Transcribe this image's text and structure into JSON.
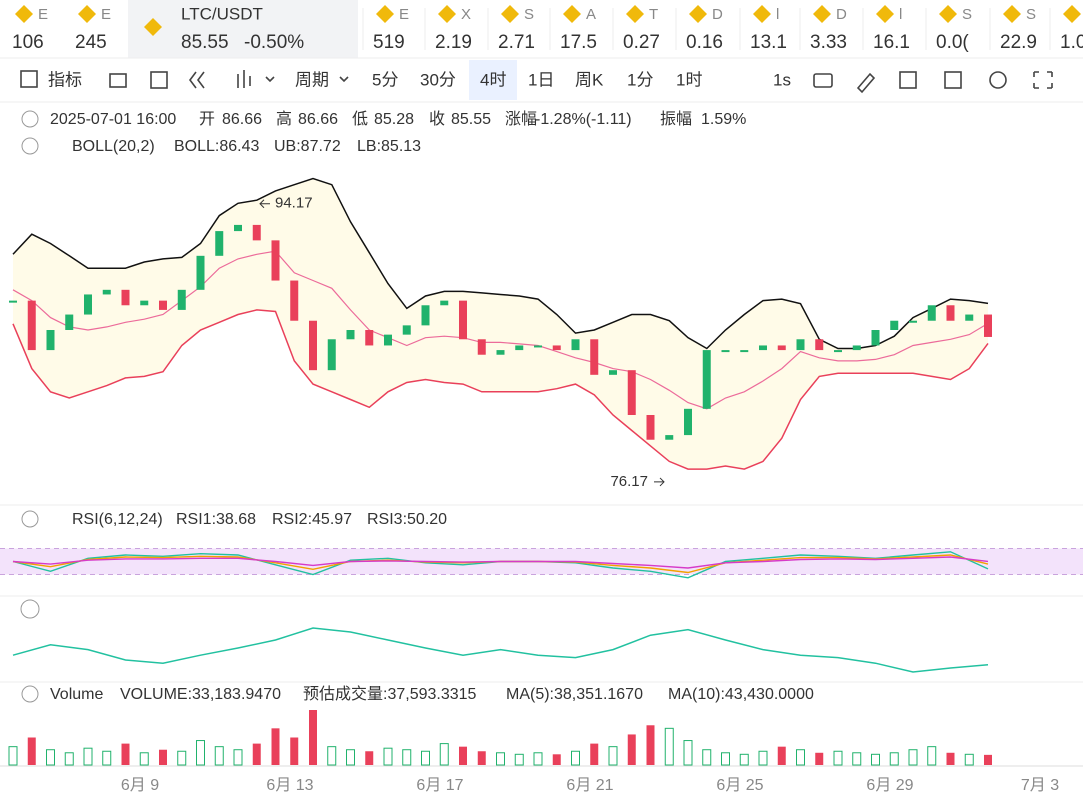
{
  "ticker": [
    {
      "symbol": "E",
      "price": "106",
      "color": "#e9405a"
    },
    {
      "symbol": "E",
      "price": "245",
      "color": "#20b26c"
    },
    {
      "symbol": "E",
      "price": "519",
      "color": "#e9405a"
    },
    {
      "symbol": "X",
      "price": "2.19",
      "color": "#e9405a"
    },
    {
      "symbol": "S",
      "price": "2.71",
      "color": "#20b26c"
    },
    {
      "symbol": "A",
      "price": "17.5",
      "color": "#e9405a"
    },
    {
      "symbol": "T",
      "price": "0.27",
      "color": "#20b26c"
    },
    {
      "symbol": "D",
      "price": "0.16",
      "color": "#20b26c"
    },
    {
      "symbol": "l",
      "price": "13.1",
      "color": "#20b26c"
    },
    {
      "symbol": "D",
      "price": "3.33",
      "color": "#222222"
    },
    {
      "symbol": "l",
      "price": "16.1",
      "color": "#20b26c"
    },
    {
      "symbol": "S",
      "price": "0.0(",
      "color": "#e9405a"
    },
    {
      "symbol": "S",
      "price": "22.9",
      "color": "#e9405a"
    },
    {
      "symbol": "S",
      "price": "1.0",
      "color": "#222222"
    }
  ],
  "active": {
    "symbol": "LTC/USDT",
    "price": "85.55",
    "change": "-0.50%"
  },
  "toolbar": [
    "指标",
    "周期",
    "5分",
    "30分",
    "4时",
    "1日",
    "周K",
    "1分",
    "1时",
    "1s"
  ],
  "info": [
    "2025-07-01 16:00",
    "开",
    "86.66",
    "高",
    "86.66",
    "低",
    "85.28",
    "收",
    "85.55",
    "涨幅",
    "-1.28%(-1.11)",
    "振幅",
    "1.59%"
  ],
  "boll_legend": [
    "BOLL(20,2)",
    "BOLL:86.43",
    "UB:87.72",
    "LB:85.13"
  ],
  "rsi_legend": [
    "RSI(6,12,24)",
    "RSI1:38.68",
    "RSI2:45.97",
    "RSI3:50.20"
  ],
  "volume_legend": [
    "Volume",
    "VOLUME:33,183.9470",
    "预估成交量:37,593.3315",
    "MA(5):38,351.1670",
    "MA(10):43,430.0000"
  ],
  "dates": [
    "6月 9",
    "6月 13",
    "6月 17",
    "6月 21",
    "6月 25",
    "6月 29",
    "7月 3"
  ],
  "chart_data": [
    {
      "type": "candlestick",
      "ylim": [
        75,
        97
      ],
      "up_color": "#20b26c",
      "down_color": "#e9405a",
      "max": 94.17,
      "min": 76.17,
      "values": [
        87.9,
        84.7,
        86.0,
        87.0,
        88.3,
        88.6,
        87.6,
        87.9,
        87.3,
        88.6,
        90.8,
        92.4,
        92.8,
        91.8,
        89.2,
        86.6,
        83.4,
        85.4,
        86.0,
        85.0,
        85.7,
        86.3,
        87.6,
        87.9,
        85.4,
        84.4,
        84.7,
        85.0,
        85.0,
        84.7,
        85.4,
        83.1,
        83.4,
        80.5,
        78.9,
        79.2,
        80.9,
        84.7,
        84.7,
        84.7,
        85.0,
        84.7,
        85.4,
        84.7,
        84.7,
        85.0,
        86.0,
        86.6,
        86.6,
        87.6,
        86.6,
        87.0,
        85.55
      ],
      "upper": {
        "color": "#111111",
        "values": [
          90.9,
          92.2,
          91.6,
          90.8,
          90.0,
          90.0,
          90.0,
          90.4,
          90.6,
          90.7,
          91.6,
          93.4,
          94.2,
          94.4,
          95.0,
          95.4,
          95.8,
          95.4,
          93.0,
          91.0,
          89.0,
          87.4,
          88.2,
          88.5,
          88.5,
          88.4,
          88.3,
          88.2,
          88.0,
          87.0,
          85.8,
          86.0,
          86.5,
          87.0,
          87.0,
          86.6,
          85.5,
          84.8,
          86.0,
          87.0,
          87.9,
          88.0,
          87.7,
          85.4,
          84.8,
          84.8,
          85.0,
          85.6,
          86.8,
          87.4,
          88.0,
          87.9,
          87.72
        ]
      },
      "middle": {
        "color": "#ec6b9a",
        "values": [
          88.6,
          87.9,
          86.8,
          86.2,
          86.0,
          86.2,
          86.5,
          86.7,
          87.0,
          87.9,
          88.8,
          90.0,
          90.6,
          90.9,
          91.1,
          89.7,
          89.2,
          88.7,
          87.3,
          86.0,
          85.5,
          85.0,
          85.5,
          85.6,
          85.5,
          85.2,
          85.2,
          85.1,
          85.0,
          84.6,
          84.2,
          83.9,
          83.5,
          83.3,
          82.8,
          82.1,
          81.3,
          80.9,
          81.6,
          82.0,
          82.7,
          83.5,
          84.6,
          84.2,
          84.0,
          84.0,
          84.1,
          84.4,
          85.0,
          85.2,
          85.4,
          85.7,
          86.43
        ]
      },
      "lower": {
        "color": "#e9405a",
        "values": [
          86.4,
          83.5,
          82.0,
          81.6,
          82.0,
          82.4,
          82.9,
          83.0,
          83.3,
          85.0,
          86.0,
          86.5,
          87.0,
          87.3,
          87.2,
          84.0,
          82.5,
          82.0,
          81.5,
          81.0,
          82.0,
          82.6,
          82.8,
          82.6,
          82.5,
          82.0,
          82.0,
          82.0,
          82.0,
          82.2,
          82.5,
          81.8,
          80.5,
          79.5,
          78.5,
          77.5,
          77.0,
          77.0,
          77.2,
          77.0,
          77.5,
          79.0,
          81.5,
          83.0,
          83.2,
          83.2,
          83.2,
          83.2,
          83.2,
          83.0,
          82.8,
          83.5,
          85.13
        ]
      },
      "band_fill": "#fffbe8"
    },
    {
      "type": "line",
      "ylim": [
        0,
        100
      ],
      "overbought": 70,
      "oversold": 30,
      "band_color": "#f3e3fb",
      "series": [
        {
          "color": "#22c1a0",
          "values": [
            50,
            35,
            55,
            60,
            58,
            62,
            60,
            45,
            30,
            52,
            55,
            48,
            45,
            50,
            50,
            48,
            40,
            35,
            25,
            50,
            55,
            60,
            58,
            55,
            60,
            65,
            38.68
          ]
        },
        {
          "color": "#f2a100",
          "values": [
            50,
            42,
            53,
            57,
            56,
            58,
            57,
            48,
            38,
            50,
            52,
            49,
            48,
            50,
            50,
            49,
            44,
            40,
            33,
            48,
            52,
            56,
            56,
            54,
            57,
            60,
            45.97
          ]
        },
        {
          "color": "#d63bc8",
          "values": [
            50,
            46,
            52,
            54,
            54,
            55,
            55,
            50,
            44,
            50,
            51,
            50,
            49,
            50,
            50,
            50,
            47,
            44,
            40,
            48,
            50,
            53,
            54,
            53,
            55,
            57,
            50.2
          ]
        }
      ]
    },
    {
      "type": "line",
      "ylim": [
        0,
        100
      ],
      "series": [
        {
          "color": "#22c1a0",
          "values": [
            31,
            44,
            38,
            25,
            21,
            31,
            40,
            50,
            65,
            60,
            50,
            40,
            31,
            38,
            31,
            28,
            38,
            56,
            63,
            50,
            38,
            31,
            28,
            21,
            10,
            15,
            19
          ]
        }
      ]
    },
    {
      "type": "bar",
      "ylim": [
        0,
        180000
      ],
      "up_color": "#20b26c",
      "down_color": "#e9405a",
      "values": [
        60000,
        90000,
        50000,
        40000,
        55000,
        45000,
        70000,
        40000,
        50000,
        45000,
        80000,
        60000,
        50000,
        70000,
        120000,
        90000,
        180000,
        60000,
        50000,
        45000,
        55000,
        50000,
        45000,
        70000,
        60000,
        45000,
        40000,
        35000,
        40000,
        35000,
        45000,
        70000,
        60000,
        100000,
        130000,
        120000,
        80000,
        50000,
        40000,
        35000,
        45000,
        60000,
        50000,
        40000,
        45000,
        40000,
        35000,
        40000,
        50000,
        60000,
        40000,
        35000,
        33183.947
      ]
    }
  ]
}
